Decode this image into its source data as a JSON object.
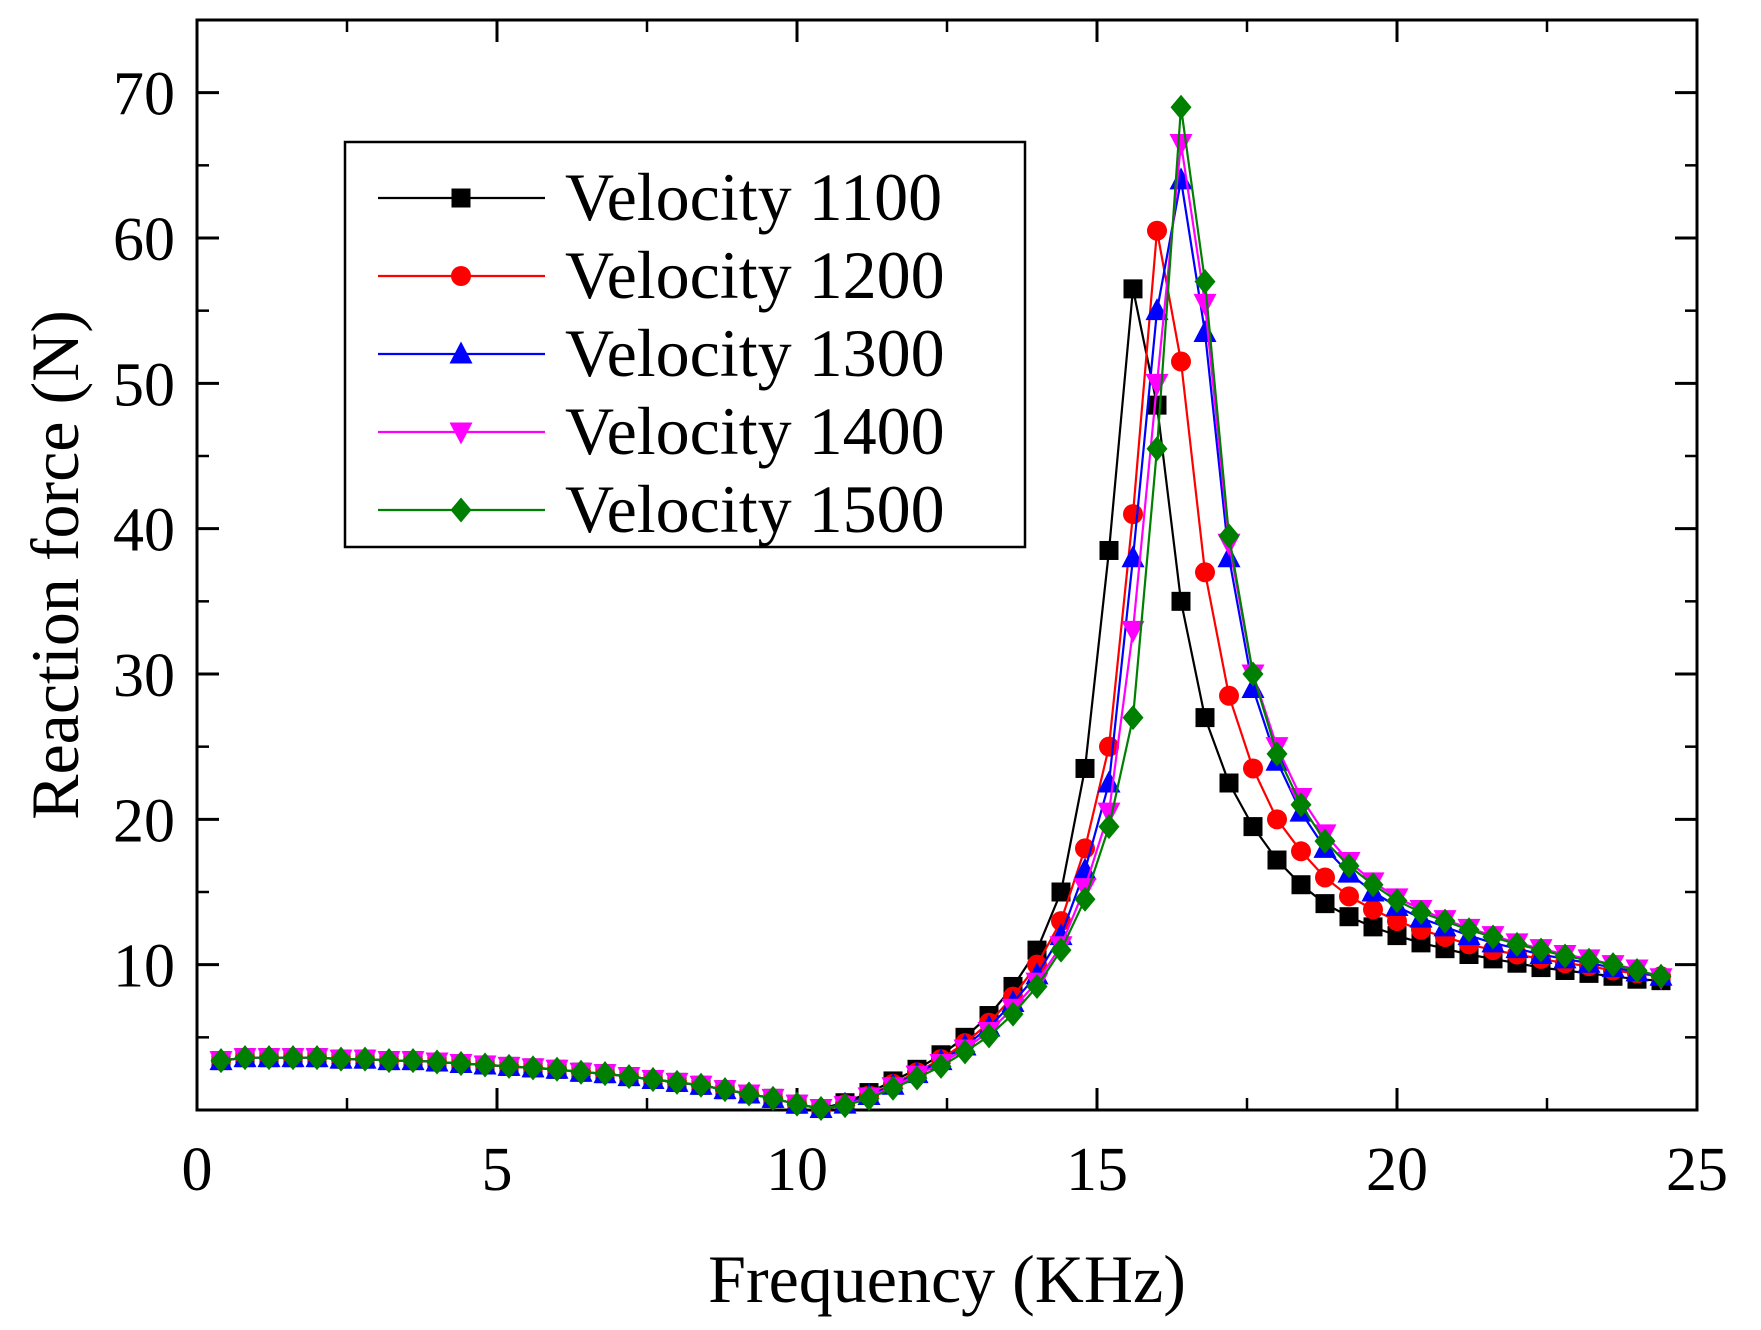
{
  "chart_data": {
    "type": "line",
    "title": "",
    "xlabel": "Frequency (KHz)",
    "ylabel": "Reaction force (N)",
    "xlim": [
      0,
      25
    ],
    "ylim": [
      0,
      75
    ],
    "xticks": [
      0,
      5,
      10,
      15,
      20,
      25
    ],
    "xtick_labels": [
      "0",
      "5",
      "10",
      "15",
      "20",
      "25"
    ],
    "yticks": [
      10,
      20,
      30,
      40,
      50,
      60,
      70
    ],
    "ytick_labels": [
      "10",
      "20",
      "30",
      "40",
      "50",
      "60",
      "70"
    ],
    "grid": false,
    "legend_position": "top-left",
    "series": [
      {
        "name": "Velocity 1100",
        "color": "#000000",
        "marker": "square",
        "x": [
          0.4,
          0.8,
          1.2,
          1.6,
          2.0,
          2.4,
          2.8,
          3.2,
          3.6,
          4.0,
          4.4,
          4.8,
          5.2,
          5.6,
          6.0,
          6.4,
          6.8,
          7.2,
          7.6,
          8.0,
          8.4,
          8.8,
          9.2,
          9.6,
          10.0,
          10.4,
          10.8,
          11.2,
          11.6,
          12.0,
          12.4,
          12.8,
          13.2,
          13.6,
          14.0,
          14.4,
          14.8,
          15.2,
          15.6,
          16.0,
          16.4,
          16.8,
          17.2,
          17.6,
          18.0,
          18.4,
          18.8,
          19.2,
          19.6,
          20.0,
          20.4,
          20.8,
          21.2,
          21.6,
          22.0,
          22.4,
          22.8,
          23.2,
          23.6,
          24.0,
          24.4
        ],
        "y": [
          3.4,
          3.6,
          3.6,
          3.6,
          3.6,
          3.5,
          3.5,
          3.4,
          3.4,
          3.3,
          3.2,
          3.1,
          3.0,
          2.9,
          2.8,
          2.6,
          2.5,
          2.3,
          2.1,
          1.9,
          1.7,
          1.4,
          1.1,
          0.8,
          0.4,
          0.1,
          0.5,
          1.2,
          2.0,
          2.8,
          3.8,
          5.0,
          6.5,
          8.5,
          11.0,
          15.0,
          23.5,
          38.5,
          56.5,
          48.5,
          35.0,
          27.0,
          22.5,
          19.5,
          17.2,
          15.5,
          14.2,
          13.3,
          12.6,
          12.0,
          11.5,
          11.1,
          10.7,
          10.4,
          10.1,
          9.8,
          9.6,
          9.4,
          9.2,
          9.0,
          8.9
        ]
      },
      {
        "name": "Velocity 1200",
        "color": "#ff0000",
        "marker": "circle",
        "x": [
          0.4,
          0.8,
          1.2,
          1.6,
          2.0,
          2.4,
          2.8,
          3.2,
          3.6,
          4.0,
          4.4,
          4.8,
          5.2,
          5.6,
          6.0,
          6.4,
          6.8,
          7.2,
          7.6,
          8.0,
          8.4,
          8.8,
          9.2,
          9.6,
          10.0,
          10.4,
          10.8,
          11.2,
          11.6,
          12.0,
          12.4,
          12.8,
          13.2,
          13.6,
          14.0,
          14.4,
          14.8,
          15.2,
          15.6,
          16.0,
          16.4,
          16.8,
          17.2,
          17.6,
          18.0,
          18.4,
          18.8,
          19.2,
          19.6,
          20.0,
          20.4,
          20.8,
          21.2,
          21.6,
          22.0,
          22.4,
          22.8,
          23.2,
          23.6,
          24.0,
          24.4
        ],
        "y": [
          3.4,
          3.6,
          3.6,
          3.6,
          3.6,
          3.5,
          3.5,
          3.4,
          3.4,
          3.3,
          3.2,
          3.1,
          3.0,
          2.9,
          2.8,
          2.6,
          2.5,
          2.3,
          2.1,
          1.9,
          1.7,
          1.4,
          1.1,
          0.8,
          0.4,
          0.1,
          0.4,
          1.0,
          1.8,
          2.6,
          3.5,
          4.6,
          6.0,
          7.8,
          10.0,
          13.0,
          18.0,
          25.0,
          41.0,
          60.5,
          51.5,
          37.0,
          28.5,
          23.5,
          20.0,
          17.8,
          16.0,
          14.7,
          13.8,
          13.0,
          12.4,
          11.9,
          11.4,
          11.0,
          10.7,
          10.4,
          10.1,
          9.9,
          9.6,
          9.4,
          9.2
        ]
      },
      {
        "name": "Velocity 1300",
        "color": "#0000ff",
        "marker": "triangle-up",
        "x": [
          0.4,
          0.8,
          1.2,
          1.6,
          2.0,
          2.4,
          2.8,
          3.2,
          3.6,
          4.0,
          4.4,
          4.8,
          5.2,
          5.6,
          6.0,
          6.4,
          6.8,
          7.2,
          7.6,
          8.0,
          8.4,
          8.8,
          9.2,
          9.6,
          10.0,
          10.4,
          10.8,
          11.2,
          11.6,
          12.0,
          12.4,
          12.8,
          13.2,
          13.6,
          14.0,
          14.4,
          14.8,
          15.2,
          15.6,
          16.0,
          16.4,
          16.8,
          17.2,
          17.6,
          18.0,
          18.4,
          18.8,
          19.2,
          19.6,
          20.0,
          20.4,
          20.8,
          21.2,
          21.6,
          22.0,
          22.4,
          22.8,
          23.2,
          23.6,
          24.0,
          24.4
        ],
        "y": [
          3.4,
          3.6,
          3.6,
          3.6,
          3.6,
          3.5,
          3.5,
          3.4,
          3.4,
          3.3,
          3.2,
          3.1,
          3.0,
          2.9,
          2.8,
          2.6,
          2.5,
          2.3,
          2.1,
          1.9,
          1.7,
          1.4,
          1.1,
          0.8,
          0.4,
          0.1,
          0.4,
          1.0,
          1.7,
          2.5,
          3.4,
          4.4,
          5.7,
          7.4,
          9.3,
          12.0,
          16.5,
          22.5,
          38.0,
          55.0,
          64.0,
          53.5,
          38.0,
          29.0,
          24.0,
          20.5,
          18.0,
          16.3,
          15.0,
          14.0,
          13.2,
          12.6,
          12.0,
          11.5,
          11.1,
          10.7,
          10.4,
          10.1,
          9.8,
          9.5,
          9.2
        ]
      },
      {
        "name": "Velocity 1400",
        "color": "#ff00ff",
        "marker": "triangle-down",
        "x": [
          0.4,
          0.8,
          1.2,
          1.6,
          2.0,
          2.4,
          2.8,
          3.2,
          3.6,
          4.0,
          4.4,
          4.8,
          5.2,
          5.6,
          6.0,
          6.4,
          6.8,
          7.2,
          7.6,
          8.0,
          8.4,
          8.8,
          9.2,
          9.6,
          10.0,
          10.4,
          10.8,
          11.2,
          11.6,
          12.0,
          12.4,
          12.8,
          13.2,
          13.6,
          14.0,
          14.4,
          14.8,
          15.2,
          15.6,
          16.0,
          16.4,
          16.8,
          17.2,
          17.6,
          18.0,
          18.4,
          18.8,
          19.2,
          19.6,
          20.0,
          20.4,
          20.8,
          21.2,
          21.6,
          22.0,
          22.4,
          22.8,
          23.2,
          23.6,
          24.0,
          24.4
        ],
        "y": [
          3.4,
          3.6,
          3.6,
          3.6,
          3.6,
          3.5,
          3.5,
          3.4,
          3.4,
          3.3,
          3.2,
          3.1,
          3.0,
          2.9,
          2.8,
          2.6,
          2.5,
          2.3,
          2.1,
          1.9,
          1.7,
          1.4,
          1.1,
          0.8,
          0.4,
          0.1,
          0.3,
          0.9,
          1.6,
          2.4,
          3.2,
          4.2,
          5.4,
          7.0,
          8.8,
          11.3,
          15.3,
          20.5,
          33.0,
          50.0,
          66.5,
          55.5,
          39.0,
          30.0,
          25.0,
          21.5,
          19.0,
          17.1,
          15.7,
          14.6,
          13.8,
          13.1,
          12.5,
          12.0,
          11.5,
          11.1,
          10.7,
          10.4,
          10.0,
          9.7,
          9.1
        ]
      },
      {
        "name": "Velocity 1500",
        "color": "#008000",
        "marker": "diamond",
        "x": [
          0.4,
          0.8,
          1.2,
          1.6,
          2.0,
          2.4,
          2.8,
          3.2,
          3.6,
          4.0,
          4.4,
          4.8,
          5.2,
          5.6,
          6.0,
          6.4,
          6.8,
          7.2,
          7.6,
          8.0,
          8.4,
          8.8,
          9.2,
          9.6,
          10.0,
          10.4,
          10.8,
          11.2,
          11.6,
          12.0,
          12.4,
          12.8,
          13.2,
          13.6,
          14.0,
          14.4,
          14.8,
          15.2,
          15.6,
          16.0,
          16.4,
          16.8,
          17.2,
          17.6,
          18.0,
          18.4,
          18.8,
          19.2,
          19.6,
          20.0,
          20.4,
          20.8,
          21.2,
          21.6,
          22.0,
          22.4,
          22.8,
          23.2,
          23.6,
          24.0,
          24.4
        ],
        "y": [
          3.4,
          3.6,
          3.6,
          3.6,
          3.6,
          3.5,
          3.5,
          3.4,
          3.4,
          3.3,
          3.2,
          3.1,
          3.0,
          2.9,
          2.8,
          2.6,
          2.5,
          2.3,
          2.1,
          1.9,
          1.7,
          1.4,
          1.1,
          0.8,
          0.4,
          0.1,
          0.3,
          0.8,
          1.5,
          2.2,
          3.0,
          4.0,
          5.1,
          6.6,
          8.5,
          11.0,
          14.5,
          19.5,
          27.0,
          45.5,
          69.0,
          57.0,
          39.5,
          30.0,
          24.5,
          21.0,
          18.5,
          16.8,
          15.5,
          14.4,
          13.6,
          13.0,
          12.4,
          11.9,
          11.4,
          11.0,
          10.6,
          10.3,
          10.0,
          9.6,
          9.2
        ]
      }
    ]
  }
}
